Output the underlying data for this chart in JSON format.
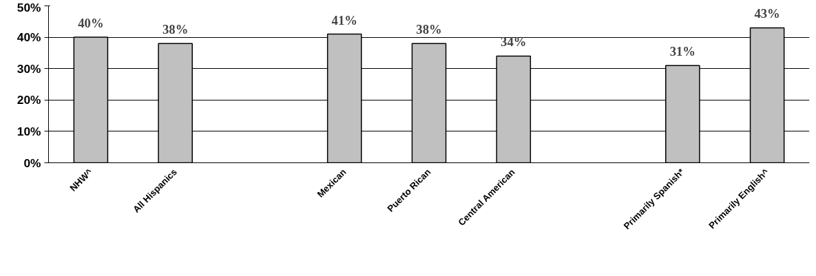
{
  "chart_data": {
    "type": "bar",
    "categories": [
      "NHW^",
      "All Hispanics",
      null,
      "Mexican",
      "Puerto Rican",
      "Central American",
      null,
      "Primarily Spanish*",
      "Primarily English^"
    ],
    "values": [
      40,
      38,
      null,
      41,
      38,
      34,
      null,
      31,
      43
    ],
    "color": "#c0c0c0",
    "ylim": [
      0,
      50
    ],
    "yticks": [
      {
        "value": 0,
        "label": "0%"
      },
      {
        "value": 10,
        "label": "10%"
      },
      {
        "value": 20,
        "label": "20%"
      },
      {
        "value": 30,
        "label": "30%"
      },
      {
        "value": 40,
        "label": "40%"
      },
      {
        "value": 50,
        "label": "50%"
      }
    ],
    "value_labels": [
      "40%",
      "38%",
      null,
      "41%",
      "38%",
      "34%",
      null,
      "31%",
      "43%"
    ],
    "grid": "y"
  }
}
